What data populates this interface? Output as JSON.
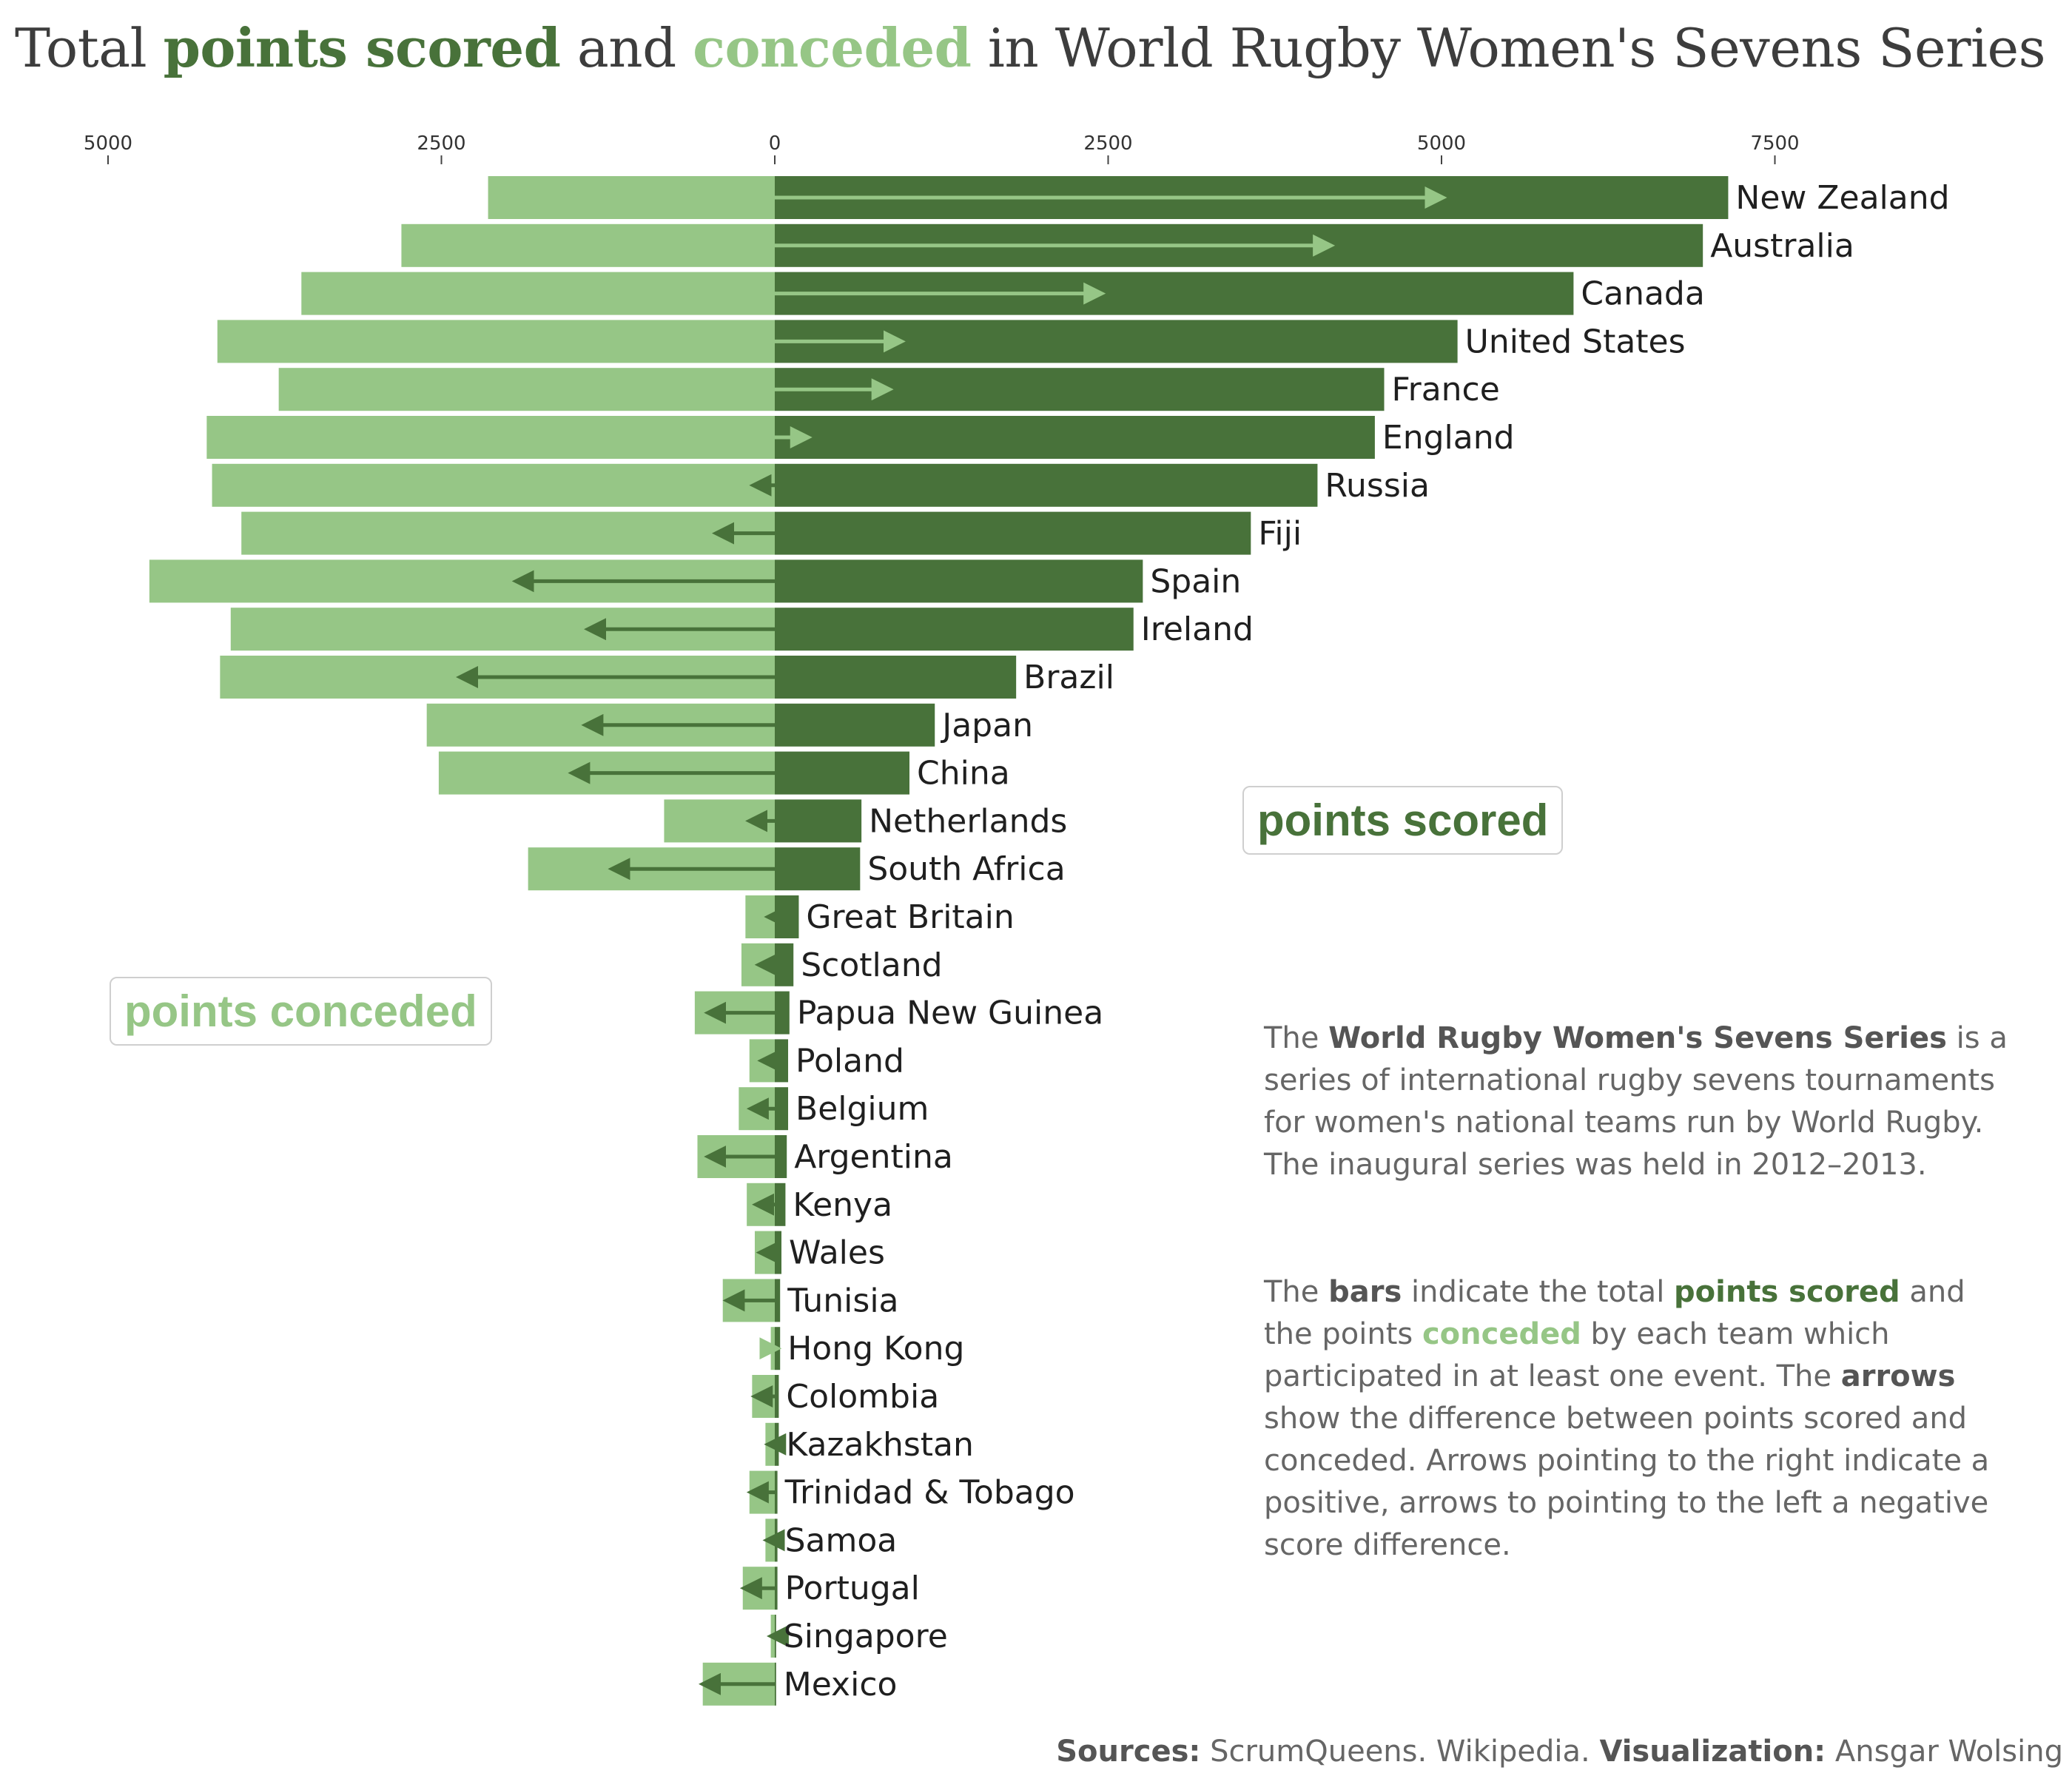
{
  "title": {
    "part1": "Total ",
    "scored": "points scored",
    "part2": " and ",
    "conceded": "conceded",
    "part3": " in World Rugby Women's Sevens Series"
  },
  "legend": {
    "scored": "points scored",
    "conceded": "points conceded"
  },
  "description": {
    "p1_pre": "The ",
    "p1_bold": "World Rugby Women's Sevens Series",
    "p1_post": " is a series of international rugby sevens tournaments for women's national teams run by World Rugby. The inaugural series was held in 2012–2013.",
    "p2_a": "The ",
    "p2_bars": "bars",
    "p2_b": " indicate the total ",
    "p2_scored": "points scored",
    "p2_c": " and the points ",
    "p2_conceded": "conceded",
    "p2_d": " by each team which participated in at least one event. The ",
    "p2_arrows": "arrows",
    "p2_e": " show the difference between points scored and conceded. Arrows pointing to the right indicate a positive, arrows to pointing to the left a negative score difference."
  },
  "sources": {
    "label1": "Sources:",
    "text1": " ScrumQueens. Wikipedia. ",
    "label2": "Visualization:",
    "text2": " Ansgar Wolsing"
  },
  "colors": {
    "scored": "#48723a",
    "conceded": "#96c686"
  },
  "chart_data": {
    "type": "bar",
    "orientation": "horizontal diverging",
    "x_ticks": [
      {
        "value": -5000,
        "label": "5000"
      },
      {
        "value": -2500,
        "label": "2500"
      },
      {
        "value": 0,
        "label": "0"
      },
      {
        "value": 2500,
        "label": "2500"
      },
      {
        "value": 5000,
        "label": "5000"
      },
      {
        "value": 7500,
        "label": "7500"
      }
    ],
    "xlim": [
      -5600,
      8500
    ],
    "categories": [
      "New Zealand",
      "Australia",
      "Canada",
      "United States",
      "France",
      "England",
      "Russia",
      "Fiji",
      "Spain",
      "Ireland",
      "Brazil",
      "Japan",
      "China",
      "Netherlands",
      "South Africa",
      "Great Britain",
      "Scotland",
      "Papua New Guinea",
      "Poland",
      "Belgium",
      "Argentina",
      "Kenya",
      "Wales",
      "Tunisia",
      "Hong Kong",
      "Colombia",
      "Kazakhstan",
      "Trinidad & Tobago",
      "Samoa",
      "Portugal",
      "Singapore",
      "Mexico"
    ],
    "series": [
      {
        "name": "points scored",
        "values": [
          7150,
          6960,
          5990,
          5120,
          4570,
          4500,
          4070,
          3570,
          2760,
          2690,
          1810,
          1200,
          1010,
          650,
          640,
          180,
          140,
          110,
          100,
          100,
          90,
          80,
          50,
          40,
          40,
          30,
          30,
          20,
          20,
          20,
          10,
          10
        ]
      },
      {
        "name": "points conceded",
        "values": [
          2150,
          2800,
          3550,
          4180,
          3720,
          4260,
          4220,
          4000,
          4690,
          4080,
          4160,
          2610,
          2520,
          830,
          1850,
          220,
          250,
          600,
          190,
          270,
          580,
          210,
          150,
          390,
          30,
          170,
          70,
          190,
          70,
          240,
          30,
          540
        ]
      }
    ],
    "difference": [
      5000,
      4160,
      2440,
      940,
      850,
      240,
      -150,
      -430,
      -1930,
      -1390,
      -2350,
      -1410,
      -1510,
      -180,
      -1210,
      -40,
      -110,
      -490,
      -90,
      -170,
      -490,
      -130,
      -100,
      -350,
      10,
      -140,
      -40,
      -170,
      -50,
      -220,
      -20,
      -530
    ],
    "xlabel": "",
    "ylabel": ""
  }
}
